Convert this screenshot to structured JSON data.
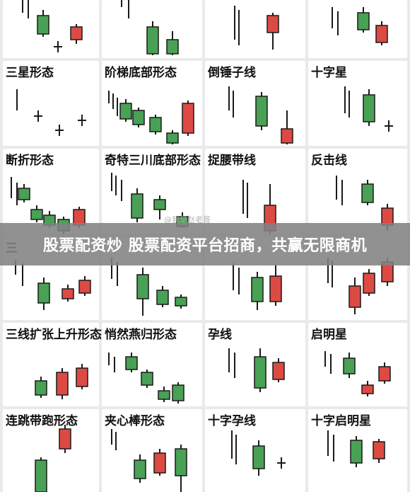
{
  "banner": {
    "headline": "股票配资炒 股票配资平台招商，共赢无限商机"
  },
  "watermark": {
    "text": "@我是赵老哥"
  },
  "colors": {
    "bull": "#48a155",
    "bear": "#dd4a44",
    "line": "#1a1a1a",
    "cell_bg": "#ffffff",
    "grid_bg": "#e8eaed",
    "banner_bg": "#828282"
  },
  "patterns": [
    {
      "title": ""
    },
    {
      "title": ""
    },
    {
      "title": ""
    },
    {
      "title": ""
    },
    {
      "title": "三星形态"
    },
    {
      "title": "阶梯底部形态"
    },
    {
      "title": "倒锤子线"
    },
    {
      "title": "十字星"
    },
    {
      "title": "断折形态"
    },
    {
      "title": "奇特三川底部形态"
    },
    {
      "title": "捉腰带线"
    },
    {
      "title": "反击线"
    },
    {
      "title": "三"
    },
    {
      "title": ""
    },
    {
      "title": ""
    },
    {
      "title": ""
    },
    {
      "title": "三线扩张上升形态"
    },
    {
      "title": "悄然燕归形态"
    },
    {
      "title": "孕线"
    },
    {
      "title": "启明星"
    },
    {
      "title": "连跳带跑形态"
    },
    {
      "title": "夹心棒形态"
    },
    {
      "title": "十字孕线"
    },
    {
      "title": "十字启明星"
    }
  ]
}
